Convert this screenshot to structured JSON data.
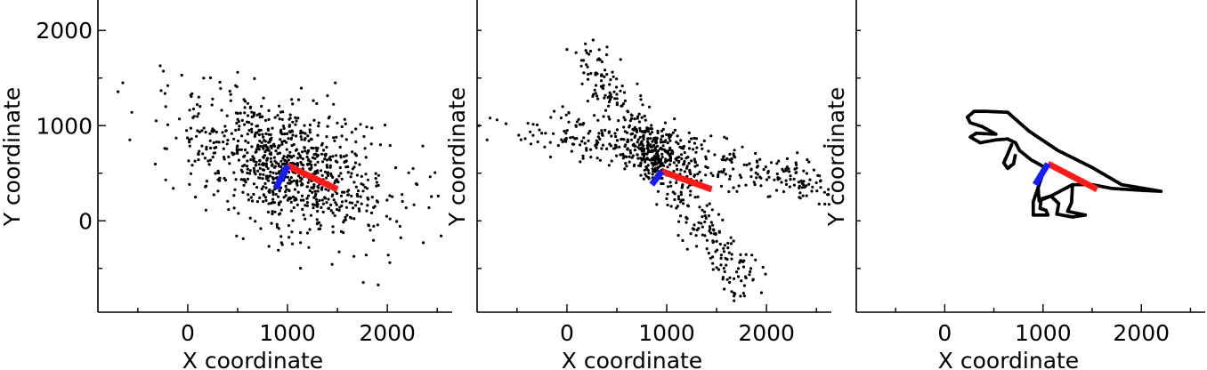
{
  "chart_data": [
    {
      "type": "scatter",
      "xlabel": "X coordinate",
      "ylabel": "Y coordinate",
      "xlim": [
        -900,
        2650
      ],
      "ylim": [
        -960,
        2320
      ],
      "xticks": [
        0,
        1000,
        2000
      ],
      "yticks": [
        0,
        1000,
        2000
      ],
      "x_minor_ticks": [
        -500,
        500,
        1500,
        2500
      ],
      "y_minor_ticks": [
        -500,
        500,
        1500
      ],
      "point_color": "#000000",
      "centroid": [
        1000,
        580
      ],
      "component_1": {
        "color": "#ff1a1a",
        "end": [
          1500,
          330
        ]
      },
      "component_2": {
        "color": "#1a1aff",
        "end": [
          880,
          340
        ]
      },
      "cloud": {
        "shape": "gaussian",
        "n": 900,
        "sd_major": 560,
        "sd_minor": 300,
        "slope": -0.5
      },
      "points_sample": [
        [
          -650,
          1450
        ],
        [
          -560,
          1140
        ],
        [
          -580,
          850
        ],
        [
          -200,
          1420
        ],
        [
          -220,
          1200
        ],
        [
          -230,
          760
        ],
        [
          -220,
          430
        ],
        [
          -60,
          1530
        ],
        [
          30,
          1320
        ],
        [
          160,
          1500
        ],
        [
          250,
          1280
        ],
        [
          500,
          1560
        ],
        [
          480,
          1420
        ],
        [
          760,
          1290
        ],
        [
          2290,
          390
        ],
        [
          2510,
          260
        ],
        [
          2360,
          -230
        ],
        [
          2010,
          -360
        ],
        [
          1130,
          -230
        ],
        [
          940,
          -230
        ],
        [
          490,
          -160
        ]
      ]
    },
    {
      "type": "scatter",
      "xlabel": "X coordinate",
      "ylabel": "Y coordinate",
      "xlim": [
        -900,
        2650
      ],
      "ylim": [
        -960,
        2320
      ],
      "xticks": [
        0,
        1000,
        2000
      ],
      "yticks": [],
      "x_minor_ticks": [
        -500,
        500,
        1500,
        2500
      ],
      "y_minor_ticks": [
        -500,
        0,
        500,
        1000,
        1500,
        2000
      ],
      "point_color": "#000000",
      "centroid": [
        950,
        520
      ],
      "component_1": {
        "color": "#ff1a1a",
        "end": [
          1450,
          330
        ]
      },
      "component_2": {
        "color": "#1a1aff",
        "end": [
          850,
          380
        ]
      },
      "clusters": [
        {
          "shape": "band",
          "from": [
            -300,
            1000
          ],
          "to": [
            2600,
            350
          ],
          "n": 360,
          "spread": 120
        },
        {
          "shape": "band",
          "from": [
            200,
            1750
          ],
          "to": [
            1800,
            -700
          ],
          "n": 360,
          "spread": 110
        },
        {
          "shape": "gaussian",
          "center": [
            900,
            700
          ],
          "n": 140,
          "sd": 160
        }
      ],
      "points_sample": [
        [
          0,
          1800
        ],
        [
          190,
          1790
        ],
        [
          220,
          1750
        ],
        [
          -880,
          1000
        ],
        [
          -770,
          1080
        ],
        [
          -700,
          1060
        ],
        [
          -800,
          850
        ],
        [
          -610,
          1020
        ],
        [
          2500,
          400
        ],
        [
          2620,
          330
        ],
        [
          1990,
          -560
        ],
        [
          1770,
          -760
        ],
        [
          1650,
          -400
        ]
      ]
    },
    {
      "type": "scatter",
      "xlabel": "X coordinate",
      "ylabel": "Y coordinate",
      "xlim": [
        -900,
        2650
      ],
      "ylim": [
        -960,
        2320
      ],
      "xticks": [
        0,
        1000,
        2000
      ],
      "yticks": [],
      "x_minor_ticks": [
        -500,
        500,
        1500,
        2500
      ],
      "y_minor_ticks": [
        -500,
        0,
        500,
        1000,
        1500,
        2000
      ],
      "point_color": "#000000",
      "centroid": [
        1050,
        600
      ],
      "component_1": {
        "color": "#ff1a1a",
        "end": [
          1550,
          330
        ]
      },
      "component_2": {
        "color": "#1a1aff",
        "end": [
          920,
          380
        ]
      },
      "outline": {
        "body": [
          [
            420,
            1150
          ],
          [
            640,
            1140
          ],
          [
            860,
            940
          ],
          [
            1150,
            740
          ],
          [
            1500,
            560
          ],
          [
            1800,
            380
          ],
          [
            2200,
            310
          ],
          [
            2000,
            320
          ],
          [
            1700,
            340
          ],
          [
            1500,
            380
          ],
          [
            1300,
            380
          ],
          [
            1080,
            260
          ],
          [
            960,
            210
          ],
          [
            950,
            350
          ],
          [
            1020,
            560
          ],
          [
            880,
            640
          ],
          [
            760,
            740
          ],
          [
            720,
            820
          ],
          [
            640,
            860
          ],
          [
            520,
            850
          ],
          [
            360,
            820
          ],
          [
            260,
            880
          ],
          [
            320,
            920
          ],
          [
            520,
            910
          ],
          [
            380,
            990
          ],
          [
            260,
            1030
          ],
          [
            230,
            1090
          ],
          [
            300,
            1150
          ],
          [
            420,
            1150
          ]
        ],
        "leg_1": [
          [
            950,
            350
          ],
          [
            900,
            200
          ],
          [
            900,
            60
          ],
          [
            1050,
            60
          ],
          [
            1030,
            110
          ],
          [
            970,
            130
          ],
          [
            980,
            230
          ],
          [
            1080,
            260
          ]
        ],
        "leg_2": [
          [
            1080,
            260
          ],
          [
            1160,
            180
          ],
          [
            1140,
            70
          ],
          [
            1300,
            40
          ],
          [
            1430,
            60
          ],
          [
            1340,
            80
          ],
          [
            1250,
            100
          ],
          [
            1290,
            190
          ],
          [
            1300,
            380
          ]
        ],
        "arm": [
          [
            680,
            800
          ],
          [
            640,
            700
          ],
          [
            600,
            610
          ],
          [
            640,
            550
          ],
          [
            700,
            600
          ],
          [
            720,
            700
          ]
        ]
      }
    }
  ]
}
